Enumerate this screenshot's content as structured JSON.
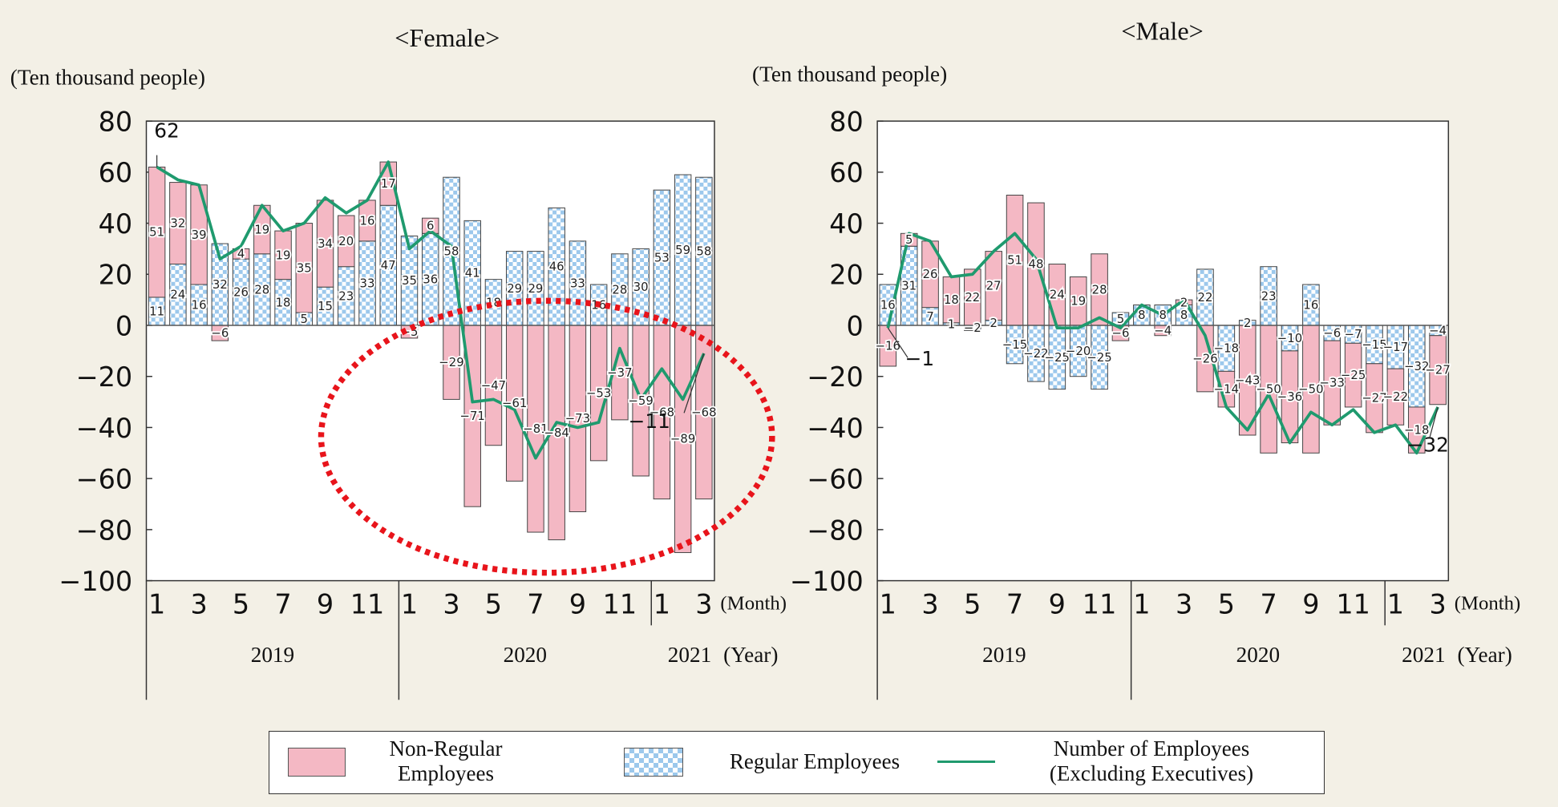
{
  "chart_data": [
    {
      "type": "bar",
      "title": "<Female>",
      "y_label": "(Ten thousand people)",
      "categories": [
        "1",
        null,
        "3",
        null,
        "5",
        null,
        "7",
        null,
        "9",
        null,
        "11",
        null,
        "1",
        null,
        "3",
        null,
        "5",
        null,
        "7",
        null,
        "9",
        null,
        "11",
        null,
        "1",
        null,
        "3"
      ],
      "years": [
        "2019",
        "2020",
        "2021"
      ],
      "x_unit": "(Month)",
      "year_unit": "(Year)",
      "ylim": [
        -100,
        80
      ],
      "yticks": [
        {
          "value": -100,
          "label": "−100"
        },
        {
          "value": -80,
          "label": "−80"
        },
        {
          "value": -60,
          "label": "−60"
        },
        {
          "value": -40,
          "label": "−40"
        },
        {
          "value": -20,
          "label": "−20"
        },
        0,
        20,
        40,
        60,
        80
      ],
      "series": [
        {
          "name": "Non-Regular Employees",
          "color": "#f4b8c4",
          "values": [
            51,
            32,
            39,
            -6,
            4,
            19,
            19,
            35,
            34,
            20,
            16,
            17,
            -5,
            6,
            -29,
            -71,
            -47,
            -61,
            -81,
            -84,
            -73,
            -53,
            -37,
            -59,
            -68,
            -89,
            -68
          ],
          "value_labels": [
            "51",
            "32",
            "39",
            "−6",
            "4",
            "19",
            "19",
            "35",
            "34",
            "20",
            "16",
            "17",
            "−5",
            "6",
            "−29",
            "−71",
            "−47",
            "−61",
            "−81",
            "−84",
            "−73",
            "−53",
            "−37",
            "−59",
            "−68",
            "−89",
            "−68"
          ]
        },
        {
          "name": "Regular Employees",
          "color": "#9cc8ec",
          "values": [
            11,
            24,
            16,
            32,
            26,
            28,
            18,
            5,
            15,
            23,
            33,
            47,
            35,
            36,
            58,
            41,
            18,
            29,
            29,
            46,
            33,
            16,
            28,
            30,
            53,
            59,
            58
          ],
          "value_labels": [
            "11",
            "24",
            "16",
            "32",
            "26",
            "28",
            "18",
            "5",
            "15",
            "23",
            "33",
            "47",
            "35",
            "36",
            "58",
            "41",
            "18",
            "29",
            "29",
            "46",
            "33",
            "16",
            "28",
            "30",
            "53",
            "59",
            "58"
          ]
        },
        {
          "name": "Number of Employees (Excluding Executives)",
          "color": "#1f9a6e",
          "values": [
            62,
            57,
            55,
            26,
            31,
            47,
            37,
            40,
            50,
            44,
            49,
            64,
            30,
            37,
            31,
            -30,
            -29,
            -33,
            -52,
            -38,
            -40,
            -38,
            -9,
            -29,
            -17,
            -29,
            -11
          ]
        }
      ],
      "annotations": [
        {
          "text": "62"
        },
        {
          "text": "−11"
        }
      ]
    },
    {
      "type": "bar",
      "title": "<Male>",
      "y_label": "(Ten thousand people)",
      "categories": [
        "1",
        null,
        "3",
        null,
        "5",
        null,
        "7",
        null,
        "9",
        null,
        "11",
        null,
        "1",
        null,
        "3",
        null,
        "5",
        null,
        "7",
        null,
        "9",
        null,
        "11",
        null,
        "1",
        null,
        "3"
      ],
      "years": [
        "2019",
        "2020",
        "2021"
      ],
      "x_unit": "(Month)",
      "year_unit": "(Year)",
      "ylim": [
        -100,
        80
      ],
      "yticks": [
        {
          "value": -100,
          "label": "−100"
        },
        {
          "value": -80,
          "label": "−80"
        },
        {
          "value": -60,
          "label": "−60"
        },
        {
          "value": -40,
          "label": "−40"
        },
        {
          "value": -20,
          "label": "−20"
        },
        0,
        20,
        40,
        60,
        80
      ],
      "series": [
        {
          "color": "#f4b8c4",
          "values": [
            -16,
            5,
            26,
            18,
            22,
            27,
            51,
            48,
            24,
            19,
            28,
            -6,
            null,
            -4,
            2,
            -26,
            -14,
            -43,
            -50,
            -36,
            -50,
            -33,
            -25,
            -27,
            -22,
            -18,
            -27
          ],
          "value_labels": [
            "−16",
            "5",
            "26",
            "18",
            "22",
            "27",
            "51",
            "48",
            "24",
            "19",
            "28",
            "−6",
            null,
            "−4",
            "2",
            "−26",
            "−14",
            "−43",
            "−50",
            "−36",
            "−50",
            "−33",
            "−25",
            "−27",
            "−22",
            "−18",
            "−27"
          ]
        },
        {
          "color": "#9cc8ec",
          "values": [
            16,
            31,
            7,
            1,
            -2,
            2,
            -15,
            -22,
            -25,
            -20,
            -25,
            5,
            8,
            8,
            8,
            22,
            -18,
            2,
            23,
            -10,
            16,
            -6,
            -7,
            -15,
            -17,
            -32,
            -4
          ],
          "value_labels": [
            "16",
            "31",
            "7",
            "1",
            "−2",
            "2",
            "−15",
            "−22",
            "−25",
            "−20",
            "−25",
            "5",
            "8",
            "8",
            "8",
            "22",
            "−18",
            "2",
            "23",
            "−10",
            "16",
            "−6",
            "−7",
            "−15",
            "−17",
            "−32",
            "−4"
          ]
        },
        {
          "color": "#1f9a6e",
          "values": [
            -1,
            36,
            33,
            19,
            20,
            29,
            36,
            26,
            -1,
            -1,
            3,
            -1,
            8,
            4,
            10,
            -4,
            -32,
            -41,
            -27,
            -46,
            -34,
            -39,
            -33,
            -42,
            -39,
            -50,
            -32
          ]
        }
      ],
      "annotations": [
        {
          "text": "−1"
        },
        {
          "text": "−32"
        }
      ]
    }
  ]
}
